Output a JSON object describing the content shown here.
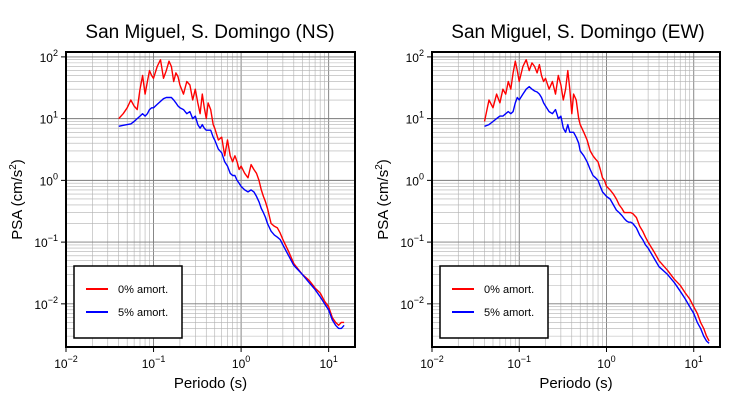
{
  "chart_data": [
    {
      "type": "line",
      "title": "San Miguel, S. Domingo (NS)",
      "xlabel": "Periodo (s)",
      "ylabel_main": "PSA (cm/s",
      "ylabel_sup": "2",
      "ylabel_close": ")",
      "xscale": "log",
      "yscale": "log",
      "xlim": [
        0.01,
        20
      ],
      "ylim": [
        0.002,
        120
      ],
      "x_ticks": [
        {
          "value": 0.01,
          "base": "10",
          "exp": "−2"
        },
        {
          "value": 0.1,
          "base": "10",
          "exp": "−1"
        },
        {
          "value": 1,
          "base": "10",
          "exp": "0"
        },
        {
          "value": 10,
          "base": "10",
          "exp": "1"
        }
      ],
      "y_ticks": [
        {
          "value": 0.01,
          "base": "10",
          "exp": "−2"
        },
        {
          "value": 0.1,
          "base": "10",
          "exp": "−1"
        },
        {
          "value": 1,
          "base": "10",
          "exp": "0"
        },
        {
          "value": 10,
          "base": "10",
          "exp": "1"
        },
        {
          "value": 100,
          "base": "10",
          "exp": "2"
        }
      ],
      "grid": true,
      "legend_position": "bottom-left",
      "series": [
        {
          "name": "0% amort.",
          "color": "#ff0000",
          "x": [
            0.04,
            0.045,
            0.05,
            0.055,
            0.06,
            0.065,
            0.07,
            0.075,
            0.08,
            0.085,
            0.09,
            0.095,
            0.1,
            0.11,
            0.12,
            0.13,
            0.14,
            0.15,
            0.16,
            0.17,
            0.18,
            0.19,
            0.2,
            0.22,
            0.24,
            0.26,
            0.28,
            0.3,
            0.32,
            0.34,
            0.36,
            0.38,
            0.4,
            0.42,
            0.45,
            0.48,
            0.5,
            0.55,
            0.6,
            0.65,
            0.7,
            0.75,
            0.8,
            0.85,
            0.9,
            0.95,
            1.0,
            1.1,
            1.2,
            1.3,
            1.4,
            1.5,
            1.6,
            1.7,
            1.8,
            1.9,
            2.0,
            2.2,
            2.4,
            2.6,
            2.8,
            3.0,
            3.5,
            4.0,
            5.0,
            6.0,
            7.0,
            8.0,
            9.0,
            10.0,
            11.0,
            12.0,
            13.0,
            14.0,
            15.0
          ],
          "y": [
            10,
            12,
            15,
            20,
            16,
            14,
            30,
            50,
            25,
            40,
            60,
            50,
            45,
            70,
            90,
            45,
            60,
            85,
            70,
            40,
            55,
            48,
            35,
            25,
            40,
            35,
            20,
            30,
            18,
            12,
            25,
            15,
            10,
            18,
            14,
            8,
            7,
            4.5,
            5,
            2.5,
            4.5,
            2.5,
            2.0,
            2.5,
            2.0,
            1.5,
            1.7,
            1.3,
            1.1,
            1.8,
            1.5,
            1.3,
            1.0,
            0.7,
            0.55,
            0.45,
            0.35,
            0.2,
            0.18,
            0.17,
            0.14,
            0.11,
            0.07,
            0.045,
            0.03,
            0.024,
            0.018,
            0.015,
            0.011,
            0.009,
            0.006,
            0.005,
            0.0045,
            0.005,
            0.005
          ]
        },
        {
          "name": "5% amort.",
          "color": "#0000ff",
          "x": [
            0.04,
            0.045,
            0.05,
            0.055,
            0.06,
            0.065,
            0.07,
            0.075,
            0.08,
            0.085,
            0.09,
            0.095,
            0.1,
            0.11,
            0.12,
            0.13,
            0.14,
            0.15,
            0.16,
            0.17,
            0.18,
            0.19,
            0.2,
            0.22,
            0.24,
            0.26,
            0.28,
            0.3,
            0.32,
            0.34,
            0.36,
            0.38,
            0.4,
            0.42,
            0.45,
            0.48,
            0.5,
            0.55,
            0.6,
            0.65,
            0.7,
            0.75,
            0.8,
            0.85,
            0.9,
            0.95,
            1.0,
            1.1,
            1.2,
            1.3,
            1.4,
            1.5,
            1.6,
            1.7,
            1.8,
            1.9,
            2.0,
            2.2,
            2.4,
            2.6,
            2.8,
            3.0,
            3.5,
            4.0,
            5.0,
            6.0,
            7.0,
            8.0,
            9.0,
            10.0,
            11.0,
            12.0,
            13.0,
            14.0,
            15.0
          ],
          "y": [
            7.5,
            7.8,
            8,
            8.2,
            9,
            10,
            11,
            12,
            11,
            12,
            14,
            15,
            15,
            17,
            19,
            21,
            22,
            22,
            22,
            20,
            18,
            16,
            15,
            14,
            12,
            13,
            10,
            11,
            8,
            7,
            8,
            7,
            6.5,
            6.5,
            6.5,
            5,
            4.5,
            3.2,
            2.8,
            2,
            1.7,
            1.3,
            1.2,
            1.2,
            1.0,
            0.9,
            0.8,
            0.7,
            0.65,
            0.7,
            0.65,
            0.55,
            0.45,
            0.35,
            0.3,
            0.25,
            0.2,
            0.15,
            0.13,
            0.12,
            0.11,
            0.09,
            0.06,
            0.042,
            0.03,
            0.022,
            0.017,
            0.013,
            0.01,
            0.008,
            0.0055,
            0.0045,
            0.004,
            0.004,
            0.0045
          ]
        }
      ]
    },
    {
      "type": "line",
      "title": "San Miguel, S. Domingo (EW)",
      "xlabel": "Periodo (s)",
      "ylabel_main": "PSA (cm/s",
      "ylabel_sup": "2",
      "ylabel_close": ")",
      "xscale": "log",
      "yscale": "log",
      "xlim": [
        0.01,
        20
      ],
      "ylim": [
        0.002,
        120
      ],
      "x_ticks": [
        {
          "value": 0.01,
          "base": "10",
          "exp": "−2"
        },
        {
          "value": 0.1,
          "base": "10",
          "exp": "−1"
        },
        {
          "value": 1,
          "base": "10",
          "exp": "0"
        },
        {
          "value": 10,
          "base": "10",
          "exp": "1"
        }
      ],
      "y_ticks": [
        {
          "value": 0.01,
          "base": "10",
          "exp": "−2"
        },
        {
          "value": 0.1,
          "base": "10",
          "exp": "−1"
        },
        {
          "value": 1,
          "base": "10",
          "exp": "0"
        },
        {
          "value": 10,
          "base": "10",
          "exp": "1"
        },
        {
          "value": 100,
          "base": "10",
          "exp": "2"
        }
      ],
      "grid": true,
      "legend_position": "bottom-left",
      "series": [
        {
          "name": "0% amort.",
          "color": "#ff0000",
          "x": [
            0.04,
            0.045,
            0.05,
            0.055,
            0.06,
            0.065,
            0.07,
            0.075,
            0.08,
            0.085,
            0.09,
            0.095,
            0.1,
            0.11,
            0.12,
            0.13,
            0.14,
            0.15,
            0.16,
            0.17,
            0.18,
            0.19,
            0.2,
            0.22,
            0.24,
            0.26,
            0.28,
            0.3,
            0.32,
            0.34,
            0.36,
            0.38,
            0.4,
            0.42,
            0.45,
            0.48,
            0.5,
            0.55,
            0.6,
            0.65,
            0.7,
            0.75,
            0.8,
            0.85,
            0.9,
            0.95,
            1.0,
            1.1,
            1.2,
            1.3,
            1.4,
            1.5,
            1.6,
            1.7,
            1.8,
            1.9,
            2.0,
            2.2,
            2.4,
            2.6,
            2.8,
            3.0,
            3.5,
            4.0,
            5.0,
            6.0,
            7.0,
            8.0,
            9.0,
            10.0,
            11.0,
            12.0,
            13.0,
            14.0,
            15.0
          ],
          "y": [
            9,
            20,
            15,
            25,
            18,
            30,
            25,
            40,
            30,
            55,
            85,
            60,
            40,
            70,
            90,
            60,
            80,
            70,
            55,
            75,
            50,
            40,
            45,
            30,
            40,
            25,
            50,
            35,
            20,
            30,
            60,
            30,
            12,
            25,
            20,
            10,
            8,
            6,
            4.5,
            3,
            2.5,
            2.2,
            2.0,
            1.5,
            1.1,
            1.0,
            0.8,
            0.7,
            0.6,
            0.5,
            0.4,
            0.35,
            0.3,
            0.3,
            0.3,
            0.3,
            0.29,
            0.25,
            0.18,
            0.15,
            0.12,
            0.1,
            0.07,
            0.05,
            0.035,
            0.025,
            0.02,
            0.015,
            0.012,
            0.009,
            0.007,
            0.005,
            0.004,
            0.003,
            0.0025
          ]
        },
        {
          "name": "5% amort.",
          "color": "#0000ff",
          "x": [
            0.04,
            0.045,
            0.05,
            0.055,
            0.06,
            0.065,
            0.07,
            0.075,
            0.08,
            0.085,
            0.09,
            0.095,
            0.1,
            0.11,
            0.12,
            0.13,
            0.14,
            0.15,
            0.16,
            0.17,
            0.18,
            0.19,
            0.2,
            0.22,
            0.24,
            0.26,
            0.28,
            0.3,
            0.32,
            0.34,
            0.36,
            0.38,
            0.4,
            0.42,
            0.45,
            0.48,
            0.5,
            0.55,
            0.6,
            0.65,
            0.7,
            0.75,
            0.8,
            0.85,
            0.9,
            0.95,
            1.0,
            1.1,
            1.2,
            1.3,
            1.4,
            1.5,
            1.6,
            1.7,
            1.8,
            1.9,
            2.0,
            2.2,
            2.4,
            2.6,
            2.8,
            3.0,
            3.5,
            4.0,
            5.0,
            6.0,
            7.0,
            8.0,
            9.0,
            10.0,
            11.0,
            12.0,
            13.0,
            14.0,
            15.0
          ],
          "y": [
            7.5,
            8,
            9,
            10,
            11,
            11,
            12,
            13,
            12,
            13,
            18,
            22,
            20,
            25,
            30,
            33,
            30,
            28,
            27,
            25,
            22,
            18,
            16,
            13,
            12,
            14,
            10,
            11,
            7,
            6,
            8,
            6,
            6,
            6,
            5,
            4,
            3,
            2.5,
            2.0,
            1.5,
            1.2,
            1.1,
            1.0,
            0.8,
            0.65,
            0.6,
            0.55,
            0.5,
            0.4,
            0.33,
            0.3,
            0.27,
            0.24,
            0.22,
            0.21,
            0.21,
            0.2,
            0.17,
            0.13,
            0.11,
            0.09,
            0.08,
            0.055,
            0.04,
            0.03,
            0.022,
            0.016,
            0.012,
            0.009,
            0.007,
            0.005,
            0.004,
            0.003,
            0.0025,
            0.0023
          ]
        }
      ]
    }
  ]
}
